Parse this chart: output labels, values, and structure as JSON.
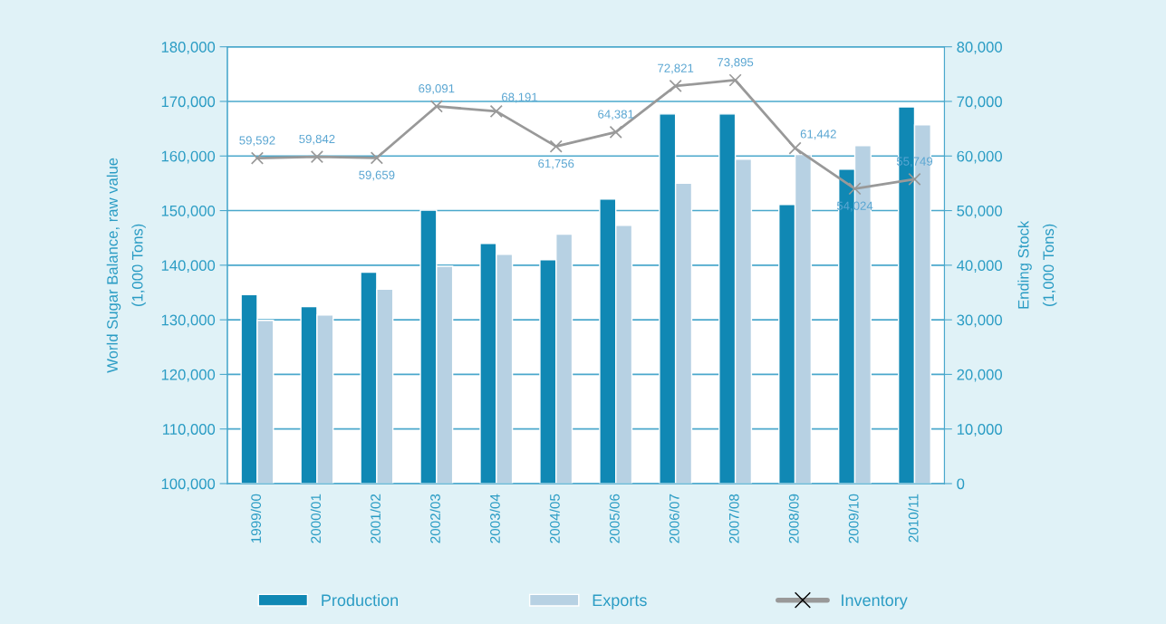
{
  "chart_data": {
    "type": "bar",
    "ylabel": "World Sugar Balance, raw value\n(1,000 Tons)",
    "y2label": "Ending Stock\n(1,000 Tons)",
    "categories": [
      "1999/00",
      "2000/01",
      "2001/02",
      "2002/03",
      "2003/04",
      "2004/05",
      "2005/06",
      "2006/07",
      "2007/08",
      "2008/09",
      "2009/10",
      "2010/11"
    ],
    "series": [
      {
        "name": "Production",
        "color": "#1088b4",
        "values": [
          134600,
          132400,
          138700,
          150100,
          144000,
          141000,
          152100,
          167700,
          167700,
          151100,
          157600,
          169000
        ]
      },
      {
        "name": "Exports",
        "color": "#b7d1e3",
        "values": [
          129900,
          130900,
          135600,
          139800,
          142000,
          145700,
          147300,
          155000,
          159400,
          160300,
          161900,
          165700
        ]
      },
      {
        "name": "Inventory",
        "type": "line",
        "axis": "y2",
        "color": "#999999",
        "marker": "cross",
        "values": [
          59592,
          59842,
          59659,
          69091,
          68191,
          61756,
          64381,
          72821,
          73895,
          61442,
          54024,
          55749
        ],
        "value_labels": [
          "59,592",
          "59,842",
          "59,659",
          "69,091",
          "68,191",
          "61,756",
          "64,381",
          "72,821",
          "73,895",
          "61,442",
          "54,024",
          "55,749"
        ]
      }
    ],
    "ylim": [
      100000,
      180000
    ],
    "yticks": [
      {
        "value": 100000,
        "label": "100,000"
      },
      {
        "value": 110000,
        "label": "110,000"
      },
      {
        "value": 120000,
        "label": "120,000"
      },
      {
        "value": 130000,
        "label": "130,000"
      },
      {
        "value": 140000,
        "label": "140,000"
      },
      {
        "value": 150000,
        "label": "150,000"
      },
      {
        "value": 160000,
        "label": "160,000"
      },
      {
        "value": 170000,
        "label": "170,000"
      },
      {
        "value": 180000,
        "label": "180,000"
      }
    ],
    "y2lim": [
      0,
      80000
    ],
    "y2ticks": [
      0,
      {
        "value": 10000,
        "label": "10,000"
      },
      {
        "value": 20000,
        "label": "20,000"
      },
      {
        "value": 30000,
        "label": "30,000"
      },
      {
        "value": 40000,
        "label": "40,000"
      },
      {
        "value": 50000,
        "label": "50,000"
      },
      {
        "value": 60000,
        "label": "60,000"
      },
      {
        "value": 70000,
        "label": "70,000"
      },
      {
        "value": 80000,
        "label": "80,000"
      }
    ],
    "grid": "y",
    "legend": "bottom"
  }
}
